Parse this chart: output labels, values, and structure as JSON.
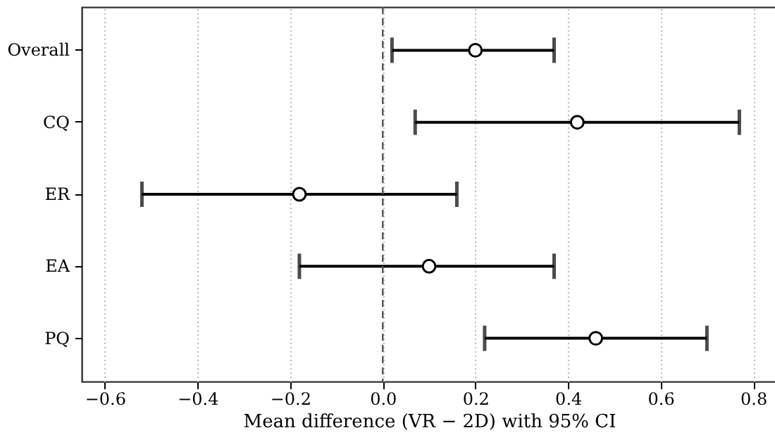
{
  "chart_data": {
    "type": "scatter",
    "orientation": "horizontal",
    "xlabel": "Mean difference (VR − 2D) with 95% CI",
    "categories": [
      "Overall",
      "CQ",
      "ER",
      "EA",
      "PQ"
    ],
    "series": [
      {
        "color": "#000000",
        "values": [
          0.2,
          0.42,
          -0.18,
          0.1,
          0.46
        ],
        "errors": [
          [
            0.02,
            0.37
          ],
          [
            0.07,
            0.77
          ],
          [
            -0.52,
            0.16
          ],
          [
            -0.18,
            0.37
          ],
          [
            0.22,
            0.7
          ]
        ]
      }
    ],
    "xlim": [
      -0.65,
      0.85
    ],
    "xticks": [
      -0.6,
      -0.4,
      -0.2,
      {
        "value": 0,
        "label": "0.0"
      },
      0.2,
      0.4,
      0.6,
      0.8
    ],
    "ref_lines": [
      {
        "axis": "x",
        "value": 0,
        "color": "#555555",
        "line_style": "dashed"
      }
    ],
    "grid": "x",
    "marker": "circle"
  }
}
